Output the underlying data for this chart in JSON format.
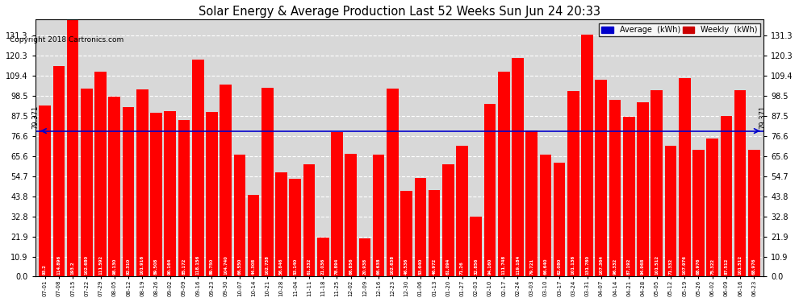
{
  "title": "Solar Energy & Average Production Last 52 Weeks Sun Jun 24 20:33",
  "copyright": "Copyright 2018 Cartronics.com",
  "average_value": 79.371,
  "bar_color": "#ff0000",
  "average_line_color": "#0000cc",
  "background_color": "#ffffff",
  "plot_bg_color": "#d8d8d8",
  "grid_color": "#ffffff",
  "yticks": [
    0.0,
    10.9,
    21.9,
    32.8,
    43.8,
    54.7,
    65.6,
    76.6,
    87.5,
    98.5,
    109.4,
    120.3,
    131.3
  ],
  "legend_avg_color": "#0000cc",
  "legend_weekly_color": "#cc0000",
  "categories": [
    "07-01",
    "07-08",
    "07-15",
    "07-22",
    "07-29",
    "08-05",
    "08-12",
    "08-19",
    "08-26",
    "09-02",
    "09-09",
    "09-16",
    "09-23",
    "09-30",
    "10-07",
    "10-14",
    "10-21",
    "10-28",
    "11-04",
    "11-11",
    "11-18",
    "11-25",
    "12-02",
    "12-09",
    "12-16",
    "12-23",
    "12-30",
    "01-06",
    "01-13",
    "01-20",
    "01-27",
    "02-03",
    "02-10",
    "02-17",
    "02-24",
    "03-03",
    "03-10",
    "03-17",
    "03-24",
    "03-31",
    "04-07",
    "04-14",
    "04-21",
    "04-28",
    "05-05",
    "05-12",
    "05-19",
    "05-26",
    "06-02",
    "06-09",
    "06-16",
    "06-23"
  ],
  "values": [
    93.2,
    114.896,
    193.2,
    102.68,
    111.592,
    98.13,
    92.31,
    101.916,
    89.508,
    90.164,
    85.172,
    118.156,
    89.75,
    104.74,
    66.55,
    44.308,
    102.738,
    56.846,
    53.14,
    61.332,
    21.036,
    78.894,
    66.856,
    20.938,
    66.638,
    102.638,
    46.536,
    53.64,
    46.972,
    61.094,
    71.26,
    32.856,
    94.16,
    111.748,
    119.184,
    79.721,
    66.64,
    62.08,
    101.136,
    131.78,
    107.364,
    96.332,
    87.192,
    94.968,
    101.512,
    71.332,
    107.976,
    68.976,
    75.322,
    87.512,
    101.512,
    68.976
  ],
  "bar_labels": [
    "93.2",
    "114.896",
    "193.2",
    "102.680",
    "111.592",
    "98.130",
    "92.310",
    "101.916",
    "89.508",
    "90.164",
    "85.172",
    "118.156",
    "89.750",
    "104.740",
    "66.550",
    "44.308",
    "102.738",
    "56.846",
    "53.140",
    "61.332",
    "21.036",
    "78.894",
    "66.856",
    "20.938",
    "66.638",
    "102.638",
    "46.536",
    "53.640",
    "46.972",
    "61.094",
    "71.26",
    "32.856",
    "94.160",
    "111.748",
    "119.184",
    "79.721",
    "66.640",
    "62.080",
    "101.136",
    "131.780",
    "107.364",
    "96.332",
    "87.192",
    "94.968",
    "101.512",
    "71.332",
    "107.976",
    "68.976",
    "75.322",
    "87.512",
    "101.512",
    "68.976"
  ]
}
